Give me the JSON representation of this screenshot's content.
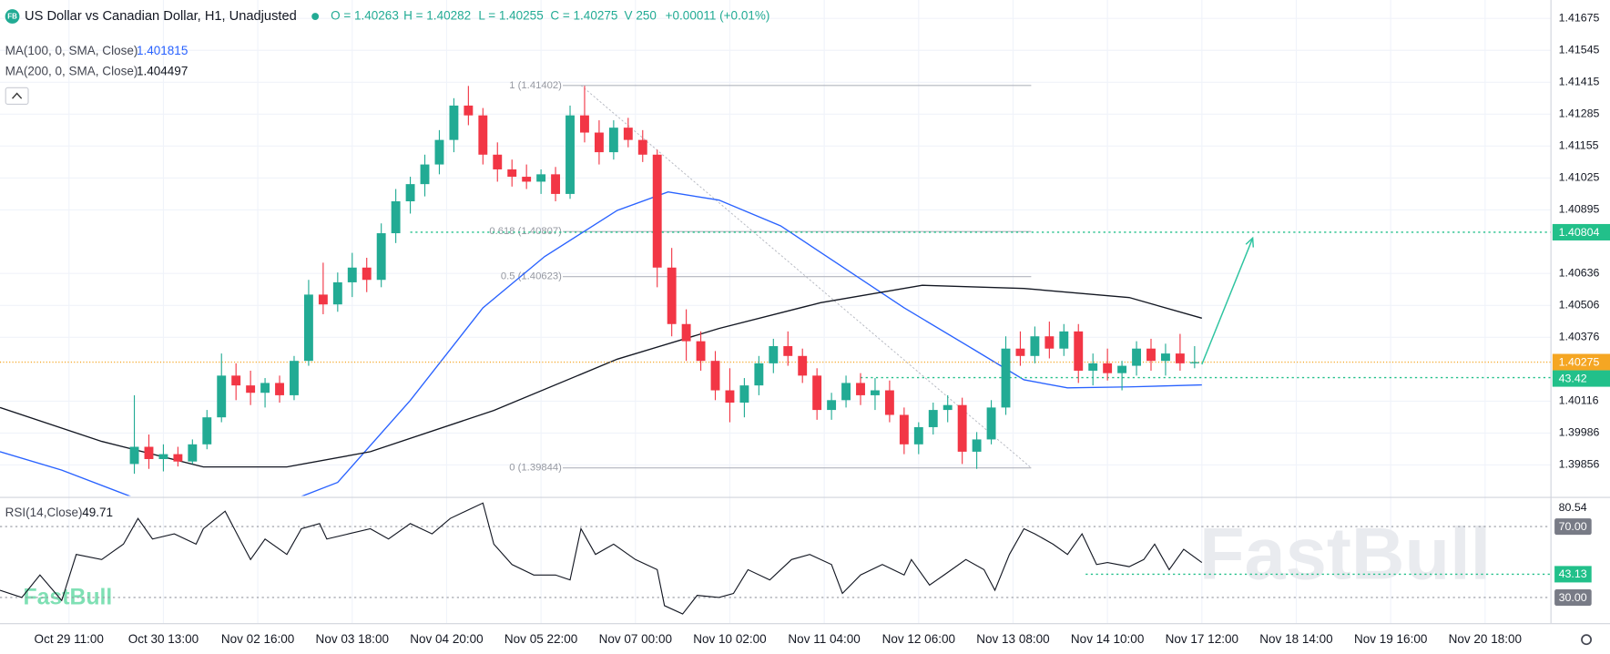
{
  "chart_data": {
    "type": "candlestick",
    "title": "US Dollar vs Canadian Dollar, H1, Unadjusted",
    "logo": "FB",
    "ohlc_labels": [
      "O = 1.40263",
      "H = 1.40282",
      "L = 1.40255",
      "C = 1.40275",
      "V 250",
      "+0.00011 (+0.01%)"
    ],
    "watermark": "FastBull",
    "grid": true,
    "up_color": "#22ab94",
    "down_color": "#f23645",
    "xlim": [
      0,
      427
    ],
    "xticks": [
      {
        "value": 19,
        "label": "Oct 29 11:00"
      },
      {
        "value": 45,
        "label": "Oct 30 13:00"
      },
      {
        "value": 71,
        "label": "Nov 02 16:00"
      },
      {
        "value": 97,
        "label": "Nov 03 18:00"
      },
      {
        "value": 123,
        "label": "Nov 04 20:00"
      },
      {
        "value": 149,
        "label": "Nov 05 22:00"
      },
      {
        "value": 175,
        "label": "Nov 07 00:00"
      },
      {
        "value": 201,
        "label": "Nov 10 02:00"
      },
      {
        "value": 227,
        "label": "Nov 11 04:00"
      },
      {
        "value": 253,
        "label": "Nov 12 06:00"
      },
      {
        "value": 279,
        "label": "Nov 13 08:00"
      },
      {
        "value": 305,
        "label": "Nov 14 10:00"
      },
      {
        "value": 331,
        "label": "Nov 17 12:00"
      },
      {
        "value": 357,
        "label": "Nov 18 14:00"
      },
      {
        "value": 383,
        "label": "Nov 19 16:00"
      },
      {
        "value": 409,
        "label": "Nov 20 18:00"
      }
    ],
    "ylim": [
      1.3973,
      1.4175
    ],
    "yticks": [
      1.41675,
      1.41545,
      1.41415,
      1.41285,
      1.41155,
      1.41025,
      1.40895,
      1.40636,
      1.40506,
      1.40376,
      1.40116,
      1.39986,
      1.39856
    ],
    "candles": {
      "x": [
        37,
        41,
        45,
        49,
        53,
        57,
        61,
        65,
        69,
        73,
        77,
        81,
        85,
        89,
        93,
        97,
        101,
        105,
        109,
        113,
        117,
        121,
        125,
        129,
        133,
        137,
        141,
        145,
        149,
        153,
        157,
        161,
        165,
        169,
        173,
        177,
        181,
        185,
        189,
        193,
        197,
        201,
        205,
        209,
        213,
        217,
        221,
        225,
        229,
        233,
        237,
        241,
        245,
        249,
        253,
        257,
        261,
        265,
        269,
        273,
        277,
        281,
        285,
        289,
        293,
        297,
        301,
        305,
        309,
        313,
        317,
        321,
        325,
        329
      ],
      "open": [
        1.3986,
        1.3993,
        1.3988,
        1.399,
        1.3987,
        1.3994,
        1.4005,
        1.4022,
        1.4018,
        1.4015,
        1.4019,
        1.4014,
        1.4028,
        1.4055,
        1.4051,
        1.406,
        1.4066,
        1.4061,
        1.408,
        1.4093,
        1.41,
        1.4108,
        1.4118,
        1.4132,
        1.4128,
        1.4112,
        1.4106,
        1.4103,
        1.4101,
        1.4104,
        1.4096,
        1.4128,
        1.4121,
        1.4113,
        1.4123,
        1.4118,
        1.4112,
        1.4066,
        1.4043,
        1.4036,
        1.4028,
        1.4016,
        1.4011,
        1.4018,
        1.4027,
        1.4034,
        1.403,
        1.4022,
        1.4008,
        1.4012,
        1.4019,
        1.4014,
        1.4016,
        1.4006,
        1.3994,
        1.4001,
        1.4008,
        1.401,
        1.3991,
        1.3996,
        1.4009,
        1.4033,
        1.403,
        1.4038,
        1.4033,
        1.404,
        1.4024,
        1.4027,
        1.4023,
        1.4026,
        1.4033,
        1.4028,
        1.4031,
        1.4027
      ],
      "high": [
        1.4014,
        1.3998,
        1.3994,
        1.3993,
        1.3996,
        1.4008,
        1.4031,
        1.4027,
        1.4024,
        1.4021,
        1.4022,
        1.403,
        1.4061,
        1.4068,
        1.4064,
        1.4072,
        1.407,
        1.4084,
        1.4098,
        1.4103,
        1.4112,
        1.4122,
        1.4135,
        1.414,
        1.4131,
        1.4117,
        1.411,
        1.4108,
        1.4106,
        1.4107,
        1.4132,
        1.414,
        1.4126,
        1.4126,
        1.4127,
        1.4122,
        1.4114,
        1.4074,
        1.4049,
        1.404,
        1.4032,
        1.4025,
        1.4021,
        1.403,
        1.4037,
        1.404,
        1.4033,
        1.4025,
        1.4015,
        1.4022,
        1.4023,
        1.4021,
        1.402,
        1.4009,
        1.4003,
        1.4011,
        1.4014,
        1.4013,
        1.3999,
        1.4012,
        1.4038,
        1.404,
        1.4042,
        1.4044,
        1.4043,
        1.4043,
        1.4031,
        1.4033,
        1.4028,
        1.4036,
        1.4037,
        1.4035,
        1.4039,
        1.4034
      ],
      "low": [
        1.3982,
        1.3984,
        1.3983,
        1.3985,
        1.3986,
        1.3992,
        1.4003,
        1.4012,
        1.401,
        1.4009,
        1.4011,
        1.4012,
        1.4026,
        1.4047,
        1.4048,
        1.4054,
        1.4056,
        1.4058,
        1.4076,
        1.4088,
        1.4095,
        1.4104,
        1.4113,
        1.4124,
        1.4108,
        1.4101,
        1.4099,
        1.4098,
        1.4096,
        1.4093,
        1.4094,
        1.4117,
        1.4108,
        1.411,
        1.4115,
        1.4109,
        1.4058,
        1.4038,
        1.4028,
        1.4024,
        1.4012,
        1.4003,
        1.4005,
        1.4014,
        1.4023,
        1.4026,
        1.4019,
        1.4004,
        1.4004,
        1.4009,
        1.401,
        1.4008,
        1.4003,
        1.399,
        1.399,
        1.3998,
        1.4003,
        1.3986,
        1.3984,
        1.3994,
        1.4006,
        1.4026,
        1.4027,
        1.4029,
        1.403,
        1.4019,
        1.4018,
        1.402,
        1.4016,
        1.4022,
        1.4024,
        1.4022,
        1.4024,
        1.4025
      ],
      "close": [
        1.3993,
        1.3988,
        1.399,
        1.3987,
        1.3994,
        1.4005,
        1.4022,
        1.4018,
        1.4015,
        1.4019,
        1.4014,
        1.4028,
        1.4055,
        1.4051,
        1.406,
        1.4066,
        1.4061,
        1.408,
        1.4093,
        1.41,
        1.4108,
        1.4118,
        1.4132,
        1.4128,
        1.4112,
        1.4106,
        1.4103,
        1.4101,
        1.4104,
        1.4096,
        1.4128,
        1.4121,
        1.4113,
        1.4123,
        1.4118,
        1.4112,
        1.4066,
        1.4043,
        1.4036,
        1.4028,
        1.4016,
        1.4011,
        1.4018,
        1.4027,
        1.4034,
        1.403,
        1.4022,
        1.4008,
        1.4012,
        1.4019,
        1.4014,
        1.4016,
        1.4006,
        1.3994,
        1.4001,
        1.4008,
        1.401,
        1.3991,
        1.3996,
        1.4009,
        1.4033,
        1.403,
        1.4038,
        1.4033,
        1.404,
        1.4024,
        1.4027,
        1.4023,
        1.4026,
        1.4033,
        1.4028,
        1.4031,
        1.4027,
        1.40275
      ]
    },
    "indicators": [
      {
        "name": "MA(100, 0, SMA, Close)",
        "last": 1.401815,
        "color": "#2962ff",
        "x": [
          0,
          17,
          37,
          82,
          93,
          113,
          133,
          150,
          170,
          184,
          198,
          215,
          232,
          249,
          268,
          282,
          294,
          311,
          331
        ],
        "values": [
          1.3991,
          1.39835,
          1.39722,
          1.39722,
          1.39785,
          1.40119,
          1.40496,
          1.40705,
          1.40893,
          1.40968,
          1.40935,
          1.4083,
          1.40663,
          1.40496,
          1.40328,
          1.40203,
          1.4017,
          1.40174,
          1.40182
        ]
      },
      {
        "name": "MA(200, 0, SMA, Close)",
        "last": 1.404497,
        "color": "#131722",
        "x": [
          0,
          28,
          56,
          79,
          102,
          136,
          170,
          198,
          226,
          254,
          282,
          311,
          331
        ],
        "values": [
          1.4009,
          1.39952,
          1.39848,
          1.39848,
          1.3991,
          1.40078,
          1.40287,
          1.40412,
          1.40517,
          1.40588,
          1.40575,
          1.40538,
          1.40454
        ]
      }
    ],
    "fib_x": [
      155,
      284
    ],
    "fib_levels": [
      {
        "label": "1 (1.41402)",
        "value": 1.41402
      },
      {
        "label": "0.618 (1.40807)",
        "value": 1.40807
      },
      {
        "label": "0.5 (1.40623)",
        "value": 1.40623
      },
      {
        "label": "0 (1.39844)",
        "value": 1.39844
      }
    ],
    "trend_line": {
      "x": [
        160,
        284
      ],
      "y": [
        1.41402,
        1.39844
      ]
    },
    "arrow": {
      "x": [
        331,
        345
      ],
      "y": [
        1.40266,
        1.4078
      ],
      "color": "#2ec4a0"
    },
    "target_line": {
      "value": 1.40804,
      "x_start": 113,
      "color": "#22c08a"
    },
    "support_line": {
      "value": 1.40212,
      "x_start": 237,
      "countdown": "43.42",
      "color": "#22c08a"
    },
    "last_price": {
      "value": 1.40275,
      "color": "#f5a623"
    },
    "rsi": {
      "name": "RSI(14,Close)",
      "last": 49.71,
      "color": "#131722",
      "ylim": [
        15.5,
        85
      ],
      "yticks": [
        80.54
      ],
      "levels": [
        {
          "value": 70,
          "label": "70.00"
        },
        {
          "value": 30,
          "label": "30.00"
        }
      ],
      "signal": {
        "value": 43.13,
        "x_start": 299,
        "color": "#22c08a"
      },
      "x": [
        0,
        6,
        11,
        17,
        21,
        28,
        34,
        38,
        42,
        48,
        54,
        56,
        62,
        66,
        69,
        73,
        79,
        83,
        88,
        90,
        96,
        102,
        107,
        113,
        119,
        124,
        130,
        133,
        136,
        141,
        147,
        153,
        157,
        160,
        164,
        169,
        175,
        181,
        183,
        188,
        192,
        198,
        202,
        206,
        212,
        218,
        223,
        229,
        232,
        237,
        243,
        249,
        251,
        256,
        260,
        266,
        271,
        274,
        278,
        282,
        285,
        290,
        294,
        298,
        302,
        305,
        311,
        315,
        318,
        322,
        326,
        331
      ],
      "values": [
        34.1,
        30,
        42.7,
        28.3,
        54.3,
        51.4,
        60.1,
        74.6,
        63,
        65.9,
        60.1,
        68.8,
        78.7,
        63,
        51.4,
        63,
        54.3,
        68.8,
        71.7,
        63,
        65.9,
        68.8,
        63,
        71.7,
        65.9,
        74.6,
        80.4,
        83.3,
        60.1,
        48.6,
        42.7,
        42.7,
        39.9,
        68.8,
        54.3,
        60.1,
        51.4,
        45.7,
        25.4,
        20.7,
        31.2,
        30,
        32.3,
        45.7,
        39.9,
        51.4,
        54.3,
        48.6,
        32.3,
        42.7,
        48.6,
        42.7,
        51.4,
        37,
        42.7,
        51.4,
        45.7,
        34.1,
        54.3,
        68.8,
        65.9,
        60.1,
        54.3,
        65.9,
        48.6,
        49.7,
        47.4,
        51.4,
        60.1,
        45.7,
        57.2,
        49.71
      ]
    }
  }
}
